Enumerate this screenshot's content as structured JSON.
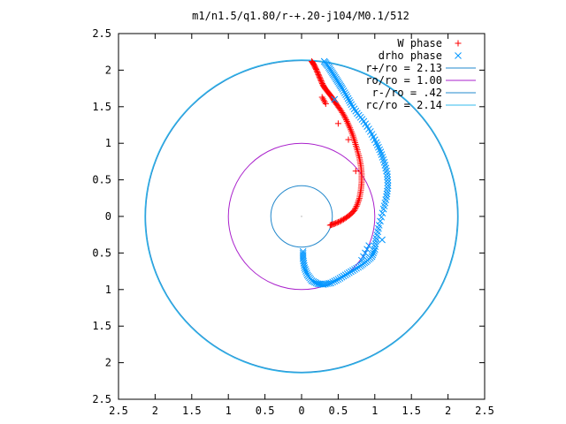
{
  "chart_data": {
    "type": "scatter",
    "title": "m1/n1.5/q1.80/r-+.20-j104/M0.1/512",
    "xlim": [
      -2.5,
      2.5
    ],
    "ylim": [
      -2.5,
      2.5
    ],
    "x_tick_labels": [
      "2.5",
      "2",
      "1.5",
      "1",
      "0.5",
      "0",
      "0.5",
      "1",
      "1.5",
      "2",
      "2.5"
    ],
    "y_tick_labels": [
      "2.5",
      "2",
      "1.5",
      "1",
      "0.5",
      "0",
      "0.5",
      "1",
      "1.5",
      "2",
      "2.5"
    ],
    "grid": false,
    "legend_position": "top-right",
    "series": [
      {
        "name": "W phase",
        "marker": "plus",
        "color": "#ff0000",
        "points": [
          [
            0.14,
            2.12
          ],
          [
            0.17,
            2.07
          ],
          [
            0.2,
            2.01
          ],
          [
            0.23,
            1.94
          ],
          [
            0.26,
            1.87
          ],
          [
            0.29,
            1.8
          ],
          [
            0.32,
            1.75
          ],
          [
            0.36,
            1.7
          ],
          [
            0.4,
            1.65
          ],
          [
            0.44,
            1.59
          ],
          [
            0.48,
            1.53
          ],
          [
            0.53,
            1.46
          ],
          [
            0.58,
            1.38
          ],
          [
            0.62,
            1.3
          ],
          [
            0.66,
            1.21
          ],
          [
            0.7,
            1.11
          ],
          [
            0.73,
            1.01
          ],
          [
            0.76,
            0.91
          ],
          [
            0.79,
            0.8
          ],
          [
            0.81,
            0.69
          ],
          [
            0.82,
            0.58
          ],
          [
            0.82,
            0.47
          ],
          [
            0.81,
            0.36
          ],
          [
            0.79,
            0.25
          ],
          [
            0.76,
            0.16
          ],
          [
            0.72,
            0.08
          ],
          [
            0.66,
            0.02
          ],
          [
            0.59,
            -0.03
          ],
          [
            0.52,
            -0.07
          ],
          [
            0.45,
            -0.1
          ],
          [
            0.39,
            -0.12
          ],
          [
            0.28,
            1.63
          ],
          [
            0.33,
            1.54
          ],
          [
            0.5,
            1.27
          ],
          [
            0.64,
            1.05
          ],
          [
            0.74,
            0.62
          ]
        ]
      },
      {
        "name": "drho phase",
        "marker": "cross",
        "color": "#0096ff",
        "points": [
          [
            0.31,
            2.12
          ],
          [
            0.36,
            2.06
          ],
          [
            0.41,
            1.98
          ],
          [
            0.46,
            1.9
          ],
          [
            0.51,
            1.82
          ],
          [
            0.56,
            1.74
          ],
          [
            0.62,
            1.64
          ],
          [
            0.68,
            1.53
          ],
          [
            0.76,
            1.41
          ],
          [
            0.85,
            1.3
          ],
          [
            0.94,
            1.16
          ],
          [
            1.02,
            1.01
          ],
          [
            1.08,
            0.88
          ],
          [
            1.13,
            0.74
          ],
          [
            1.17,
            0.58
          ],
          [
            1.18,
            0.42
          ],
          [
            1.16,
            0.27
          ],
          [
            1.12,
            0.1
          ],
          [
            1.06,
            -0.12
          ],
          [
            1.02,
            -0.3
          ],
          [
            1.0,
            -0.45
          ],
          [
            0.96,
            -0.55
          ],
          [
            0.88,
            -0.62
          ],
          [
            0.8,
            -0.68
          ],
          [
            0.7,
            -0.74
          ],
          [
            0.6,
            -0.8
          ],
          [
            0.5,
            -0.86
          ],
          [
            0.4,
            -0.91
          ],
          [
            0.3,
            -0.93
          ],
          [
            0.22,
            -0.92
          ],
          [
            0.14,
            -0.88
          ],
          [
            0.08,
            -0.8
          ],
          [
            0.04,
            -0.7
          ],
          [
            0.02,
            -0.58
          ],
          [
            0.02,
            -0.48
          ],
          [
            1.1,
            -0.32
          ],
          [
            0.45,
            1.6
          ],
          [
            0.92,
            -0.4
          ],
          [
            0.82,
            -0.6
          ]
        ]
      }
    ],
    "curves": [
      {
        "name": "r+/ro = 2.13",
        "radius": 2.13,
        "color": "#2288cc"
      },
      {
        "name": "ro/ro = 1.00",
        "radius": 1.0,
        "color": "#aa22cc"
      },
      {
        "name": "r-/ro = .42",
        "radius": 0.42,
        "color": "#2288cc"
      },
      {
        "name": "rc/ro = 2.14",
        "radius": 2.14,
        "color": "#33bbee"
      }
    ]
  }
}
